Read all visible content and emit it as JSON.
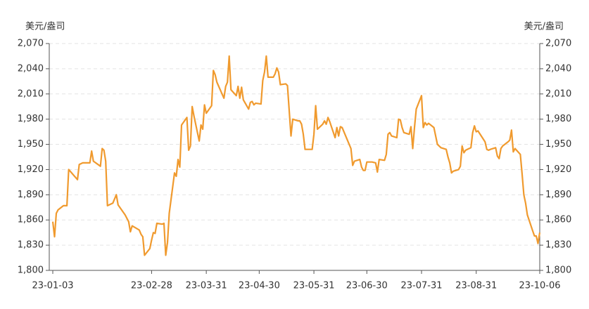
{
  "chart_data": {
    "type": "line",
    "ylabel": "美元/盎司",
    "y2label": "美元/盎司",
    "x": [
      "23-01-03",
      "23-01-04",
      "23-01-05",
      "23-01-06",
      "23-01-09",
      "23-01-11",
      "23-01-12",
      "23-01-17",
      "23-01-18",
      "23-01-20",
      "23-01-24",
      "23-01-25",
      "23-01-26",
      "23-01-30",
      "23-01-31",
      "23-02-01",
      "23-02-02",
      "23-02-03",
      "23-02-06",
      "23-02-08",
      "23-02-09",
      "23-02-13",
      "23-02-15",
      "23-02-16",
      "23-02-17",
      "23-02-21",
      "23-02-22",
      "23-02-23",
      "23-02-24",
      "23-02-27",
      "23-02-28",
      "23-03-01",
      "23-03-02",
      "23-03-03",
      "23-03-06",
      "23-03-07",
      "23-03-08",
      "23-03-09",
      "23-03-10",
      "23-03-13",
      "23-03-14",
      "23-03-15",
      "23-03-16",
      "23-03-17",
      "23-03-20",
      "23-03-21",
      "23-03-22",
      "23-03-23",
      "23-03-24",
      "23-03-27",
      "23-03-28",
      "23-03-29",
      "23-03-30",
      "23-03-31",
      "23-04-03",
      "23-04-04",
      "23-04-05",
      "23-04-06",
      "23-04-10",
      "23-04-11",
      "23-04-12",
      "23-04-13",
      "23-04-14",
      "23-04-17",
      "23-04-18",
      "23-04-19",
      "23-04-20",
      "23-04-21",
      "23-04-24",
      "23-04-25",
      "23-04-26",
      "23-04-27",
      "23-04-28",
      "23-05-01",
      "23-05-02",
      "23-05-03",
      "23-05-04",
      "23-05-05",
      "23-05-08",
      "23-05-09",
      "23-05-10",
      "23-05-11",
      "23-05-12",
      "23-05-15",
      "23-05-16",
      "23-05-17",
      "23-05-18",
      "23-05-19",
      "23-05-22",
      "23-05-23",
      "23-05-24",
      "23-05-25",
      "23-05-26",
      "23-05-30",
      "23-05-31",
      "23-06-01",
      "23-06-02",
      "23-06-05",
      "23-06-06",
      "23-06-07",
      "23-06-08",
      "23-06-09",
      "23-06-12",
      "23-06-13",
      "23-06-14",
      "23-06-15",
      "23-06-16",
      "23-06-20",
      "23-06-21",
      "23-06-22",
      "23-06-23",
      "23-06-26",
      "23-06-27",
      "23-06-28",
      "23-06-29",
      "23-06-30",
      "23-07-03",
      "23-07-05",
      "23-07-06",
      "23-07-07",
      "23-07-10",
      "23-07-11",
      "23-07-12",
      "23-07-13",
      "23-07-14",
      "23-07-17",
      "23-07-18",
      "23-07-19",
      "23-07-20",
      "23-07-21",
      "23-07-24",
      "23-07-25",
      "23-07-26",
      "23-07-27",
      "23-07-28",
      "23-07-31",
      "23-08-01",
      "23-08-02",
      "23-08-03",
      "23-08-04",
      "23-08-07",
      "23-08-08",
      "23-08-09",
      "23-08-10",
      "23-08-11",
      "23-08-14",
      "23-08-15",
      "23-08-16",
      "23-08-17",
      "23-08-18",
      "23-08-21",
      "23-08-22",
      "23-08-23",
      "23-08-24",
      "23-08-25",
      "23-08-28",
      "23-08-29",
      "23-08-30",
      "23-08-31",
      "23-09-01",
      "23-09-05",
      "23-09-06",
      "23-09-07",
      "23-09-08",
      "23-09-11",
      "23-09-12",
      "23-09-13",
      "23-09-14",
      "23-09-15",
      "23-09-18",
      "23-09-19",
      "23-09-20",
      "23-09-21",
      "23-09-22",
      "23-09-25",
      "23-09-26",
      "23-09-27",
      "23-09-28",
      "23-09-29",
      "23-10-02",
      "23-10-03",
      "23-10-04",
      "23-10-05",
      "23-10-06"
    ],
    "series": [
      {
        "color": "#f09a2e",
        "values": [
          1858,
          1840,
          1868,
          1872,
          1877,
          1877,
          1920,
          1908,
          1926,
          1928,
          1928,
          1942,
          1930,
          1924,
          1945,
          1943,
          1930,
          1877,
          1880,
          1890,
          1878,
          1866,
          1858,
          1846,
          1853,
          1848,
          1843,
          1840,
          1818,
          1826,
          1836,
          1845,
          1844,
          1856,
          1855,
          1856,
          1818,
          1833,
          1868,
          1916,
          1912,
          1932,
          1923,
          1973,
          1982,
          1943,
          1948,
          1995,
          1984,
          1954,
          1973,
          1968,
          1997,
          1987,
          1996,
          2038,
          2033,
          2024,
          2005,
          2019,
          2024,
          2055,
          2015,
          2008,
          2019,
          2005,
          2018,
          2003,
          1992,
          2000,
          2001,
          1997,
          1999,
          1998,
          2026,
          2036,
          2055,
          2030,
          2030,
          2034,
          2041,
          2036,
          2021,
          2022,
          2020,
          1990,
          1960,
          1980,
          1978,
          1978,
          1974,
          1962,
          1944,
          1944,
          1962,
          1996,
          1968,
          1974,
          1978,
          1974,
          1982,
          1977,
          1958,
          1970,
          1960,
          1971,
          1970,
          1950,
          1945,
          1925,
          1930,
          1932,
          1923,
          1919,
          1919,
          1929,
          1929,
          1928,
          1917,
          1932,
          1931,
          1938,
          1962,
          1964,
          1960,
          1958,
          1980,
          1979,
          1970,
          1964,
          1962,
          1971,
          1945,
          1970,
          1992,
          2008,
          1970,
          1976,
          1973,
          1975,
          1970,
          1960,
          1950,
          1948,
          1946,
          1944,
          1935,
          1928,
          1916,
          1918,
          1920,
          1924,
          1948,
          1940,
          1943,
          1946,
          1964,
          1972,
          1965,
          1966,
          1953,
          1944,
          1943,
          1944,
          1946,
          1936,
          1933,
          1945,
          1948,
          1953,
          1955,
          1967,
          1941,
          1945,
          1938,
          1915,
          1890,
          1880,
          1866,
          1847,
          1841,
          1841,
          1832,
          1845
        ]
      }
    ],
    "xlim": [
      "23-01-01",
      "23-10-06"
    ],
    "xticks": [
      "23-01-03",
      "23-02-28",
      "23-03-31",
      "23-04-30",
      "23-05-31",
      "23-06-30",
      "23-07-31",
      "23-08-31",
      "23-10-06"
    ],
    "ylim": [
      1800,
      2070
    ],
    "yticks": [
      {
        "value": 1800,
        "label": "1,800"
      },
      {
        "value": 1830,
        "label": "1,830"
      },
      {
        "value": 1860,
        "label": "1,860"
      },
      {
        "value": 1890,
        "label": "1,890"
      },
      {
        "value": 1920,
        "label": "1,920"
      },
      {
        "value": 1950,
        "label": "1,950"
      },
      {
        "value": 1980,
        "label": "1,980"
      },
      {
        "value": 2010,
        "label": "2,010"
      },
      {
        "value": 2040,
        "label": "2,040"
      },
      {
        "value": 2070,
        "label": "2,070"
      }
    ],
    "y2lim": [
      1800,
      2070
    ],
    "y2ticks": [
      {
        "value": 1800,
        "label": "1,800"
      },
      {
        "value": 1830,
        "label": "1,830"
      },
      {
        "value": 1860,
        "label": "1,860"
      },
      {
        "value": 1890,
        "label": "1,890"
      },
      {
        "value": 1920,
        "label": "1,920"
      },
      {
        "value": 1950,
        "label": "1,950"
      },
      {
        "value": 1980,
        "label": "1,980"
      },
      {
        "value": 2010,
        "label": "2,010"
      },
      {
        "value": 2040,
        "label": "2,040"
      },
      {
        "value": 2070,
        "label": "2,070"
      }
    ],
    "grid": true
  }
}
